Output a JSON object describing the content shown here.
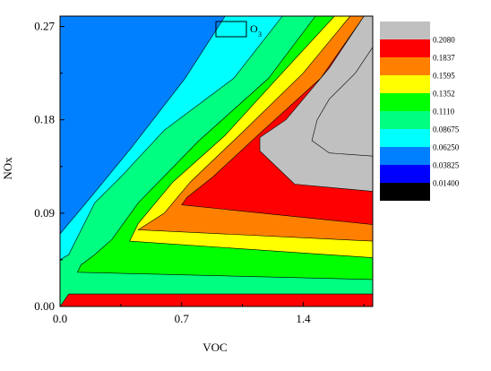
{
  "chart_data": {
    "type": "heatmap",
    "subtype": "filled-contour",
    "xlabel": "VOC",
    "ylabel": "NOx",
    "xlim": [
      0.0,
      1.8
    ],
    "ylim": [
      0.0,
      0.28
    ],
    "xticks": [
      {
        "value": 0.0,
        "label": "0.0"
      },
      {
        "value": 0.7,
        "label": "0.7"
      },
      {
        "value": 1.4,
        "label": "1.4"
      }
    ],
    "yticks": [
      {
        "value": 0.0,
        "label": "0.00"
      },
      {
        "value": 0.09,
        "label": "0.09"
      },
      {
        "value": 0.18,
        "label": "0.18"
      },
      {
        "value": 0.27,
        "label": "0.27"
      }
    ],
    "legend_title": "O",
    "legend_title_subscript": "3",
    "legend_placement": "right",
    "levels": [
      {
        "value": "",
        "color": "#c0c0c0"
      },
      {
        "value": "0.2080",
        "color": "#ff0000"
      },
      {
        "value": "0.1837",
        "color": "#ff8000"
      },
      {
        "value": "0.1595",
        "color": "#ffff00"
      },
      {
        "value": "0.1352",
        "color": "#00ff00"
      },
      {
        "value": "0.1110",
        "color": "#00ff80"
      },
      {
        "value": "0.08675",
        "color": "#00ffff"
      },
      {
        "value": "0.06250",
        "color": "#0080ff"
      },
      {
        "value": "0.03825",
        "color": "#0000ff"
      },
      {
        "value": "0.01400",
        "color": "#000000"
      }
    ],
    "regions": [
      {
        "level": 7,
        "points": [
          [
            0.0,
            0.0
          ],
          [
            1.8,
            0.0
          ],
          [
            1.8,
            0.28
          ],
          [
            0.0,
            0.28
          ]
        ]
      },
      {
        "level": 6,
        "points": [
          [
            0.0,
            0.0
          ],
          [
            1.8,
            0.0
          ],
          [
            1.8,
            0.28
          ],
          [
            0.95,
            0.28
          ],
          [
            0.72,
            0.22
          ],
          [
            0.42,
            0.155
          ],
          [
            0.2,
            0.11
          ],
          [
            0.1,
            0.09
          ],
          [
            0.0,
            0.07
          ]
        ]
      },
      {
        "level": 5,
        "points": [
          [
            0.0,
            0.0
          ],
          [
            1.8,
            0.0
          ],
          [
            1.8,
            0.28
          ],
          [
            1.28,
            0.28
          ],
          [
            1.0,
            0.22
          ],
          [
            0.6,
            0.17
          ],
          [
            0.35,
            0.125
          ],
          [
            0.2,
            0.1
          ],
          [
            0.05,
            0.05
          ],
          [
            0.0,
            0.045
          ]
        ]
      },
      {
        "level": 4,
        "points": [
          [
            0.1,
            0.033
          ],
          [
            1.8,
            0.026
          ],
          [
            1.8,
            0.28
          ],
          [
            1.47,
            0.28
          ],
          [
            1.2,
            0.22
          ],
          [
            0.8,
            0.16
          ],
          [
            0.45,
            0.1
          ],
          [
            0.3,
            0.065
          ],
          [
            0.2,
            0.05
          ],
          [
            0.12,
            0.04
          ]
        ]
      },
      {
        "level": 3,
        "points": [
          [
            0.4,
            0.063
          ],
          [
            1.8,
            0.047
          ],
          [
            1.8,
            0.28
          ],
          [
            1.58,
            0.28
          ],
          [
            1.25,
            0.22
          ],
          [
            0.95,
            0.165
          ],
          [
            0.65,
            0.12
          ],
          [
            0.45,
            0.08
          ]
        ]
      },
      {
        "level": 2,
        "points": [
          [
            0.45,
            0.074
          ],
          [
            1.8,
            0.063
          ],
          [
            1.8,
            0.28
          ],
          [
            1.67,
            0.28
          ],
          [
            1.4,
            0.225
          ],
          [
            1.05,
            0.168
          ],
          [
            0.75,
            0.12
          ],
          [
            0.6,
            0.09
          ]
        ]
      },
      {
        "level": 1,
        "points": [
          [
            0.7,
            0.098
          ],
          [
            1.8,
            0.079
          ],
          [
            1.8,
            0.28
          ],
          [
            1.75,
            0.28
          ],
          [
            1.5,
            0.22
          ],
          [
            1.15,
            0.167
          ],
          [
            0.88,
            0.125
          ],
          [
            0.73,
            0.105
          ]
        ]
      },
      {
        "level": 1,
        "points": [
          [
            0.0,
            0.0
          ],
          [
            1.8,
            0.0
          ],
          [
            1.8,
            0.012
          ],
          [
            0.05,
            0.012
          ]
        ]
      },
      {
        "level": 0,
        "points": [
          [
            1.15,
            0.15
          ],
          [
            1.35,
            0.118
          ],
          [
            1.8,
            0.111
          ],
          [
            1.8,
            0.28
          ],
          [
            1.75,
            0.28
          ],
          [
            1.55,
            0.23
          ],
          [
            1.3,
            0.18
          ],
          [
            1.15,
            0.163
          ]
        ]
      },
      {
        "level": 0,
        "points": [
          [
            1.45,
            0.16
          ],
          [
            1.55,
            0.148
          ],
          [
            1.8,
            0.145
          ],
          [
            1.8,
            0.25
          ],
          [
            1.7,
            0.225
          ],
          [
            1.55,
            0.2
          ],
          [
            1.48,
            0.18
          ]
        ]
      }
    ]
  }
}
